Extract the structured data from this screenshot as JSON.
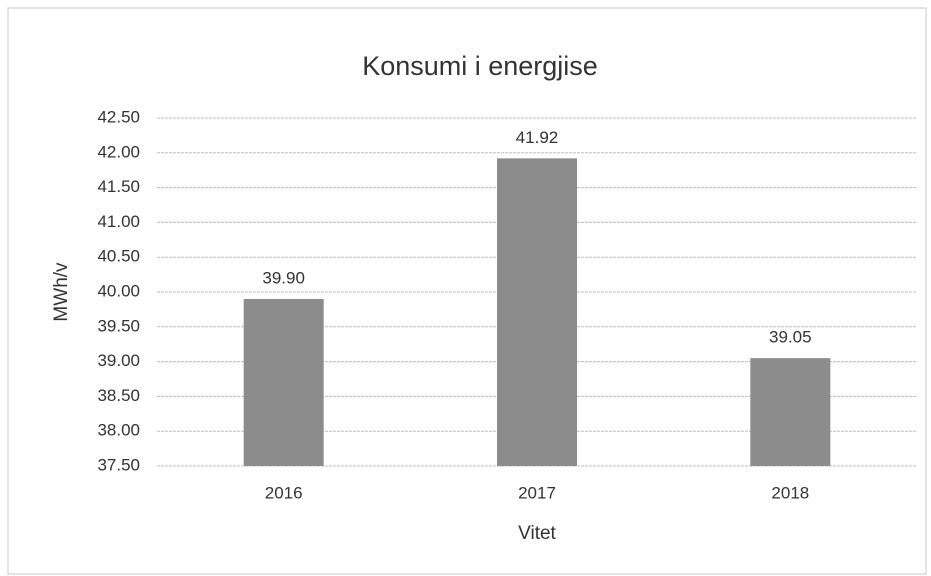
{
  "chart_data": {
    "type": "bar",
    "title": "Konsumi i energjise",
    "x_label": "Vitet",
    "y_label": "MWh/v",
    "categories": [
      "2016",
      "2017",
      "2018"
    ],
    "values": [
      39.9,
      41.92,
      39.05
    ],
    "value_labels": [
      "39.90",
      "41.92",
      "39.05"
    ],
    "color": "#8c8c8c",
    "ylim": [
      37.5,
      42.5
    ],
    "yticks": [
      {
        "value": 37.5,
        "label": "37.50"
      },
      {
        "value": 38,
        "label": "38.00"
      },
      {
        "value": 38.5,
        "label": "38.50"
      },
      {
        "value": 39,
        "label": "39.00"
      },
      {
        "value": 39.5,
        "label": "39.50"
      },
      {
        "value": 40,
        "label": "40.00"
      },
      {
        "value": 40.5,
        "label": "40.50"
      },
      {
        "value": 41,
        "label": "41.00"
      },
      {
        "value": 41.5,
        "label": "41.50"
      },
      {
        "value": 42,
        "label": "42.00"
      },
      {
        "value": 42.5,
        "label": "42.50"
      }
    ],
    "grid": true
  }
}
